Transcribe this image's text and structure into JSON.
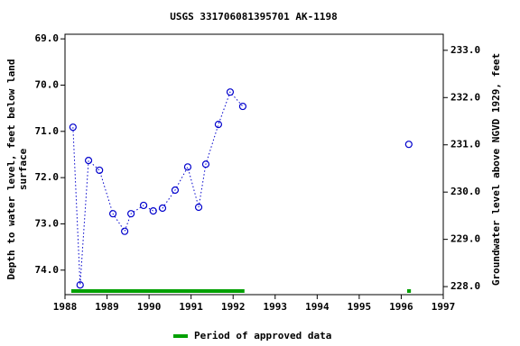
{
  "chart_data": {
    "type": "line",
    "title": "USGS 331706081395701 AK-1198",
    "ylabel": [
      "Depth to water level, feet below land",
      "surface"
    ],
    "y2label": "Groundwater level above NGVD 1929, feet",
    "x": [
      1988.19,
      1988.36,
      1988.56,
      1988.82,
      1989.14,
      1989.42,
      1989.57,
      1989.87,
      1990.1,
      1990.32,
      1990.62,
      1990.92,
      1991.18,
      1991.35,
      1991.65,
      1991.93,
      1992.23,
      null,
      1996.18
    ],
    "series": [
      {
        "name": "Depth to water level",
        "color": "#0000cc",
        "values": [
          70.91,
          74.32,
          71.63,
          71.84,
          72.78,
          73.16,
          72.78,
          72.6,
          72.72,
          72.66,
          72.27,
          71.77,
          72.64,
          71.71,
          70.85,
          70.15,
          70.46,
          null,
          71.28
        ]
      }
    ],
    "approved_periods": {
      "name": "Period of approved data",
      "color": "#00a000",
      "periods": [
        {
          "start": 1988.15,
          "end": 1992.27
        },
        {
          "start": 1996.14,
          "end": 1996.23
        }
      ]
    },
    "xlim": [
      1988,
      1997
    ],
    "xticks": [
      1988,
      1989,
      1990,
      1991,
      1992,
      1993,
      1994,
      1995,
      1996,
      1997
    ],
    "ylim": [
      68.9,
      74.53
    ],
    "yticks": [
      {
        "value": 69,
        "label": "69.0"
      },
      {
        "value": 70,
        "label": "70.0"
      },
      {
        "value": 71,
        "label": "71.0"
      },
      {
        "value": 72,
        "label": "72.0"
      },
      {
        "value": 73,
        "label": "73.0"
      },
      {
        "value": 74,
        "label": "74.0"
      }
    ],
    "y2lim": [
      233.34,
      227.83
    ],
    "y2ticks": [
      {
        "value": 233,
        "label": "233.0"
      },
      {
        "value": 232,
        "label": "232.0"
      },
      {
        "value": 231,
        "label": "231.0"
      },
      {
        "value": 230,
        "label": "230.0"
      },
      {
        "value": 229,
        "label": "229.0"
      },
      {
        "value": 228,
        "label": "228.0"
      }
    ],
    "grid": false
  }
}
